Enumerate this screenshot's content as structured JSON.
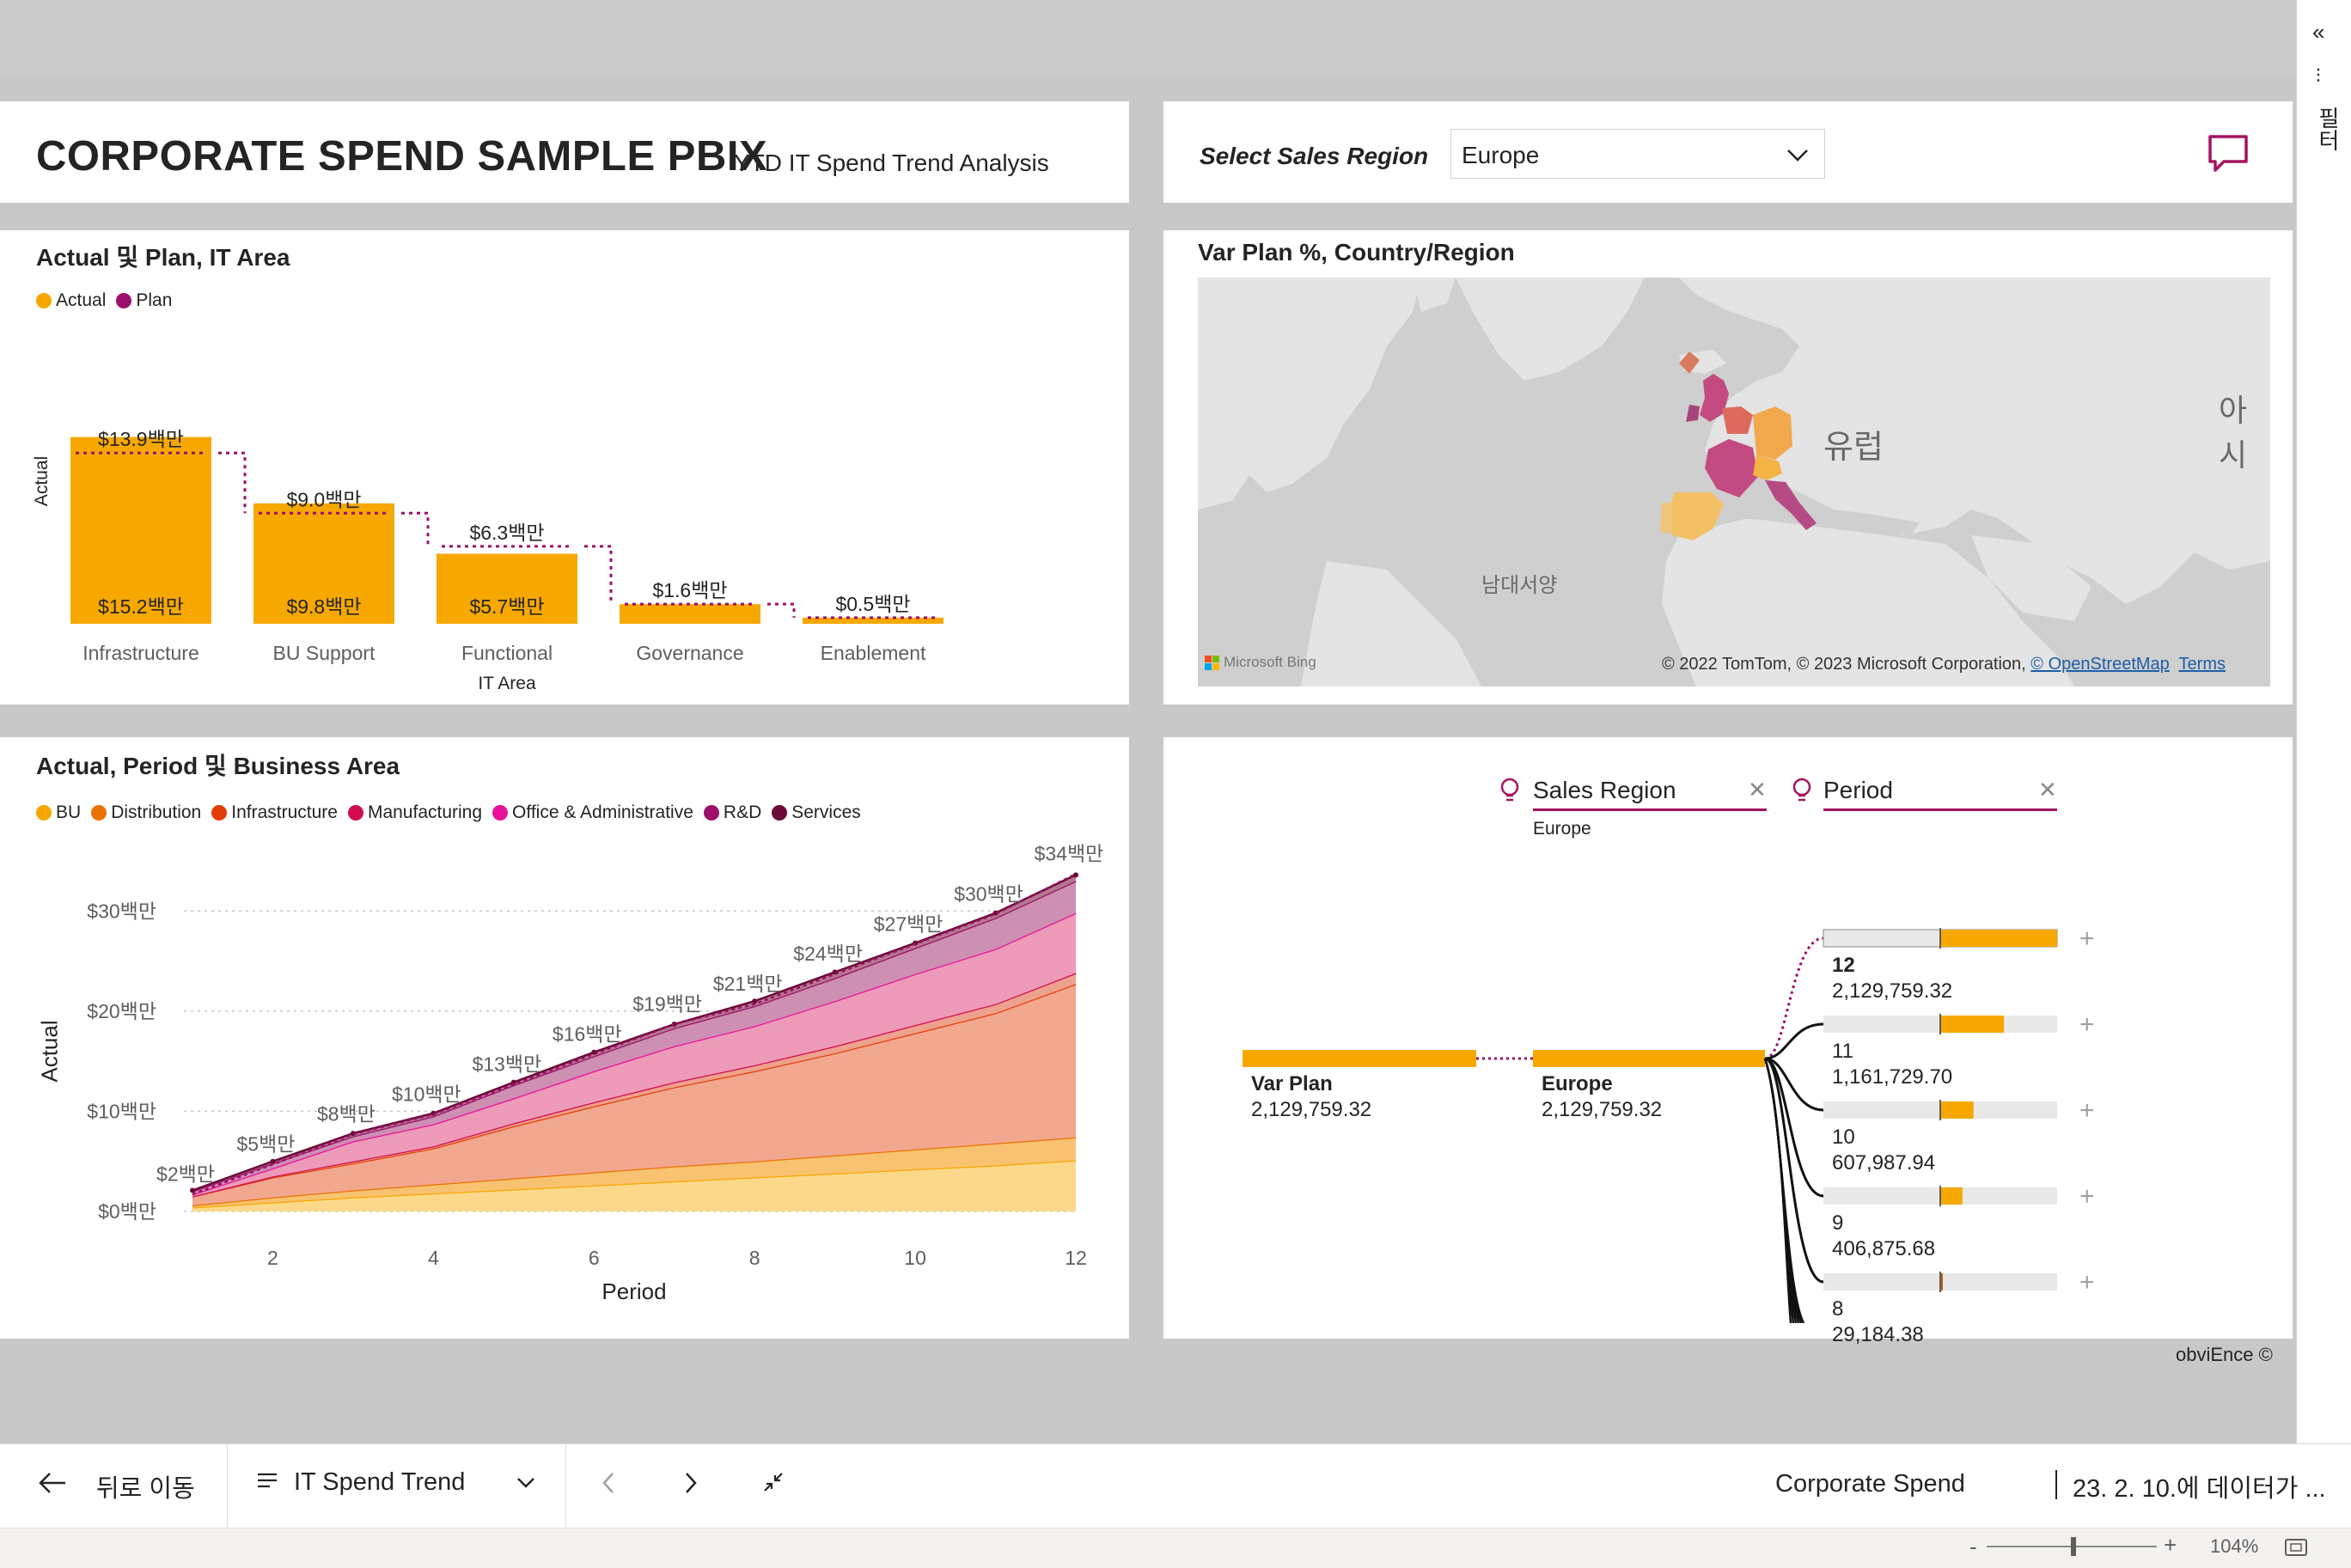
{
  "header": {
    "title": "CORPORATE SPEND SAMPLE PBIX",
    "subtitle": "YTD IT Spend Trend Analysis",
    "slicer_label": "Select Sales Region",
    "slicer_value": "Europe"
  },
  "chart1": {
    "title": "Actual 및 Plan, IT Area",
    "legend": [
      "Actual",
      "Plan"
    ],
    "ylabel": "Actual",
    "xlabel": "IT Area",
    "chart_data": {
      "type": "bar",
      "categories": [
        "Infrastructure",
        "BU Support",
        "Functional",
        "Governance",
        "Enablement"
      ],
      "series": [
        {
          "name": "Actual",
          "values": [
            15.2,
            9.8,
            5.7,
            1.6,
            0.5
          ],
          "labels": [
            "$15.2백만",
            "$9.8백만",
            "$5.7백만",
            "",
            ""
          ]
        },
        {
          "name": "Plan",
          "values": [
            13.9,
            9.0,
            6.3,
            1.6,
            0.5
          ],
          "labels": [
            "$13.9백만",
            "$9.0백만",
            "$6.3백만",
            "$1.6백만",
            "$0.5백만"
          ]
        }
      ],
      "ylabel": "Actual",
      "xlabel": "IT Area"
    }
  },
  "chart2": {
    "title": "Var Plan %, Country/Region",
    "map_labels": [
      "유럽",
      "아시",
      "남대서양"
    ],
    "attribution": "© 2022 TomTom, © 2023 Microsoft Corporation,",
    "attribution_link1": "© OpenStreetMap",
    "attribution_link2": "Terms",
    "bing": "Microsoft Bing"
  },
  "chart3": {
    "title": "Actual, Period 및 Business Area",
    "legend": [
      {
        "name": "BU",
        "color": "#f6a800"
      },
      {
        "name": "Distribution",
        "color": "#ea7200"
      },
      {
        "name": "Infrastructure",
        "color": "#e23d05"
      },
      {
        "name": "Manufacturing",
        "color": "#d10c4f"
      },
      {
        "name": "Office & Administrative",
        "color": "#e8119b"
      },
      {
        "name": "R&D",
        "color": "#9c0f6a"
      },
      {
        "name": "Services",
        "color": "#6b0a35"
      }
    ],
    "ylabel": "Actual",
    "xlabel": "Period",
    "chart_data": {
      "type": "area",
      "x": [
        1,
        2,
        3,
        4,
        5,
        6,
        7,
        8,
        9,
        10,
        11,
        12
      ],
      "totals": [
        2,
        5,
        8,
        10,
        13,
        16,
        19,
        21,
        24,
        27,
        30,
        34
      ],
      "total_labels": [
        "$2백만",
        "$5백만",
        "$8백만",
        "$10백만",
        "$13백만",
        "$16백만",
        "$19백만",
        "$21백만",
        "$24백만",
        "$27백만",
        "$30백만",
        "$34백만"
      ],
      "yticks": [
        "$0백만",
        "$10백만",
        "$20백만",
        "$30백만"
      ],
      "ytick_values": [
        0,
        10,
        20,
        30
      ],
      "xticks": [
        2,
        4,
        6,
        8,
        10,
        12
      ],
      "ylim": [
        0,
        35
      ],
      "stack_cumulative": {
        "BU": [
          0.4,
          0.9,
          1.4,
          1.8,
          2.2,
          2.6,
          3.0,
          3.4,
          3.8,
          4.2,
          4.6,
          5.1
        ],
        "Distribution": [
          0.6,
          1.4,
          2.1,
          2.7,
          3.3,
          3.9,
          4.5,
          5.0,
          5.6,
          6.2,
          6.8,
          7.4
        ],
        "Infrastructure": [
          1.5,
          3.4,
          4.8,
          6.3,
          8.5,
          10.5,
          12.4,
          14.0,
          15.8,
          17.8,
          19.8,
          22.7
        ],
        "Manufacturing": [
          1.5,
          3.5,
          5.0,
          6.5,
          8.8,
          10.9,
          12.9,
          14.6,
          16.5,
          18.6,
          20.7,
          23.8
        ],
        "Office & Administrative": [
          1.7,
          4.3,
          7.0,
          8.7,
          11.3,
          14.0,
          16.5,
          18.5,
          21.0,
          23.7,
          26.2,
          29.8
        ],
        "R&D": [
          2.0,
          4.8,
          7.5,
          9.5,
          12.6,
          15.5,
          18.3,
          20.5,
          23.3,
          26.3,
          29.3,
          33.0
        ],
        "Services": [
          2.1,
          5.0,
          7.8,
          9.8,
          12.9,
          15.9,
          18.7,
          21.0,
          23.9,
          26.8,
          29.8,
          33.6
        ]
      }
    }
  },
  "decomp": {
    "head1": "Sales Region",
    "head1_sub": "Europe",
    "head2": "Period",
    "root_label": "Var Plan",
    "root_value": "2,129,759.32",
    "node_label": "Europe",
    "node_value": "2,129,759.32",
    "items": [
      {
        "label": "12",
        "value": "2,129,759.32",
        "fill": 1.0
      },
      {
        "label": "11",
        "value": "1,161,729.70",
        "fill": 0.545
      },
      {
        "label": "10",
        "value": "607,987.94",
        "fill": 0.285
      },
      {
        "label": "9",
        "value": "406,875.68",
        "fill": 0.19
      },
      {
        "label": "8",
        "value": "29,184.38",
        "fill": 0.014
      }
    ]
  },
  "footer_brand": "obviEnce ©",
  "nav": {
    "back": "뒤로 이동",
    "page": "IT Spend Trend",
    "report": "Corporate Spend",
    "refresh": "23. 2. 10.에 데이터가 ..."
  },
  "status": {
    "zoom": "104%"
  },
  "rail": {
    "filters": "필터"
  }
}
